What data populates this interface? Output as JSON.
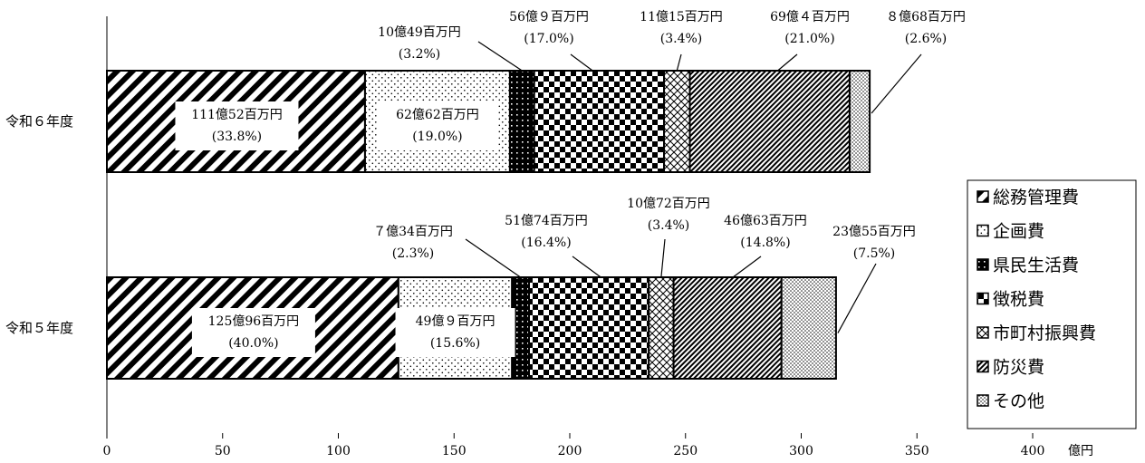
{
  "chart_data": {
    "type": "bar",
    "orientation": "horizontal",
    "stacked": true,
    "x_unit": "億円",
    "xlim": [
      0,
      400
    ],
    "x_ticks": [
      "0",
      "50",
      "100",
      "150",
      "200",
      "250",
      "300",
      "350",
      "400"
    ],
    "categories": [
      "令和６年度",
      "令和５年度"
    ],
    "series": [
      {
        "name": "総務管理費",
        "values": [
          111.52,
          125.96
        ],
        "labels": [
          "111億52百万円",
          "125億96百万円"
        ],
        "percents": [
          "(33.8%)",
          "(40.0%)"
        ]
      },
      {
        "name": "企画費",
        "values": [
          62.62,
          49.09
        ],
        "labels": [
          "62億62百万円",
          "49億９百万円"
        ],
        "percents": [
          "(19.0%)",
          "(15.6%)"
        ]
      },
      {
        "name": "県民生活費",
        "values": [
          10.49,
          7.34
        ],
        "labels": [
          "10億49百万円",
          "７億34百万円"
        ],
        "percents": [
          "(3.2%)",
          "(2.3%)"
        ]
      },
      {
        "name": "徴税費",
        "values": [
          56.09,
          51.74
        ],
        "labels": [
          "56億９百万円",
          "51億74百万円"
        ],
        "percents": [
          "(17.0%)",
          "(16.4%)"
        ]
      },
      {
        "name": "市町村振興費",
        "values": [
          11.15,
          10.72
        ],
        "labels": [
          "11億15百万円",
          "10億72百万円"
        ],
        "percents": [
          "(3.4%)",
          "(3.4%)"
        ]
      },
      {
        "name": "防災費",
        "values": [
          69.04,
          46.63
        ],
        "labels": [
          "69億４百万円",
          "46億63百万円"
        ],
        "percents": [
          "(21.0%)",
          "(14.8%)"
        ]
      },
      {
        "name": "その他",
        "values": [
          8.68,
          23.55
        ],
        "labels": [
          "８億68百万円",
          "23億55百万円"
        ],
        "percents": [
          "(2.6%)",
          "(7.5%)"
        ]
      }
    ],
    "legend": "right"
  }
}
